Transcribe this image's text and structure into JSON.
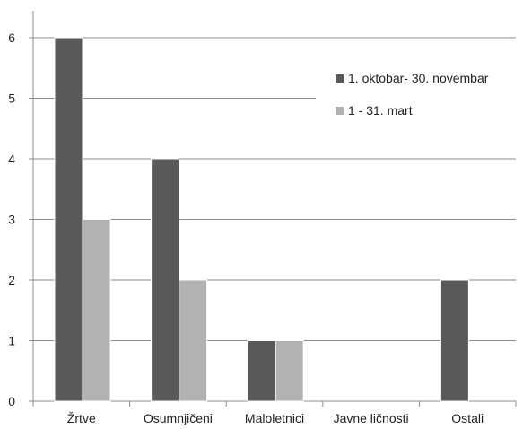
{
  "chart_data": {
    "type": "bar",
    "categories": [
      "Žrtve",
      "Osumnjičeni",
      "Maloletnici",
      "Javne ličnosti",
      "Ostali"
    ],
    "series": [
      {
        "name": "1. oktobar- 30. novembar",
        "values": [
          6,
          4,
          1,
          0,
          2
        ],
        "color": "#595959"
      },
      {
        "name": "1 - 31. mart",
        "values": [
          3,
          2,
          1,
          0,
          0
        ],
        "color": "#b2b2b2"
      }
    ],
    "y_ticks": [
      "0",
      "1",
      "2",
      "3",
      "4",
      "5",
      "6"
    ],
    "ylim": [
      0,
      6
    ],
    "grid": true,
    "legend_position": "top-right"
  }
}
